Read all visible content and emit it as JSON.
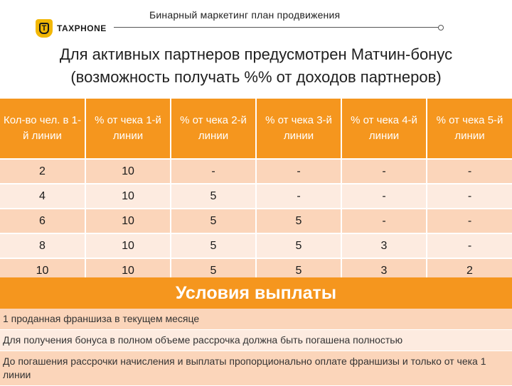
{
  "header": {
    "title": "Бинарный маркетинг план продвижения",
    "logo_letter": "T",
    "logo_text": "TAXPHONE",
    "accent_color": "#f5961e",
    "logo_color": "#f2b705"
  },
  "subtitle": {
    "line1": "Для активных партнеров предусмотрен Матчин-бонус",
    "line2": "(возможность получать %% от доходов партнеров)"
  },
  "table": {
    "headers": [
      "Кол-во чел. в 1-й линии",
      "% от чека 1-й линии",
      "% от чека 2-й линии",
      "% от чека 3-й линии",
      "% от чека 4-й линии",
      "% от чека 5-й линии"
    ],
    "rows": [
      [
        "2",
        "10",
        "-",
        "-",
        "-",
        "-"
      ],
      [
        "4",
        "10",
        "5",
        "-",
        "-",
        "-"
      ],
      [
        "6",
        "10",
        "5",
        "5",
        "-",
        "-"
      ],
      [
        "8",
        "10",
        "5",
        "5",
        "3",
        "-"
      ],
      [
        "10",
        "10",
        "5",
        "5",
        "3",
        "2"
      ]
    ]
  },
  "conditions": {
    "title": "Условия выплаты",
    "items": [
      "1 проданная франшиза в текущем месяце",
      "Для получения бонуса в полном объеме рассрочка должна быть погашена полностью",
      "До погашения рассрочки начисления и выплаты пропорционально оплате франшизы и только от чека 1 линии"
    ]
  }
}
